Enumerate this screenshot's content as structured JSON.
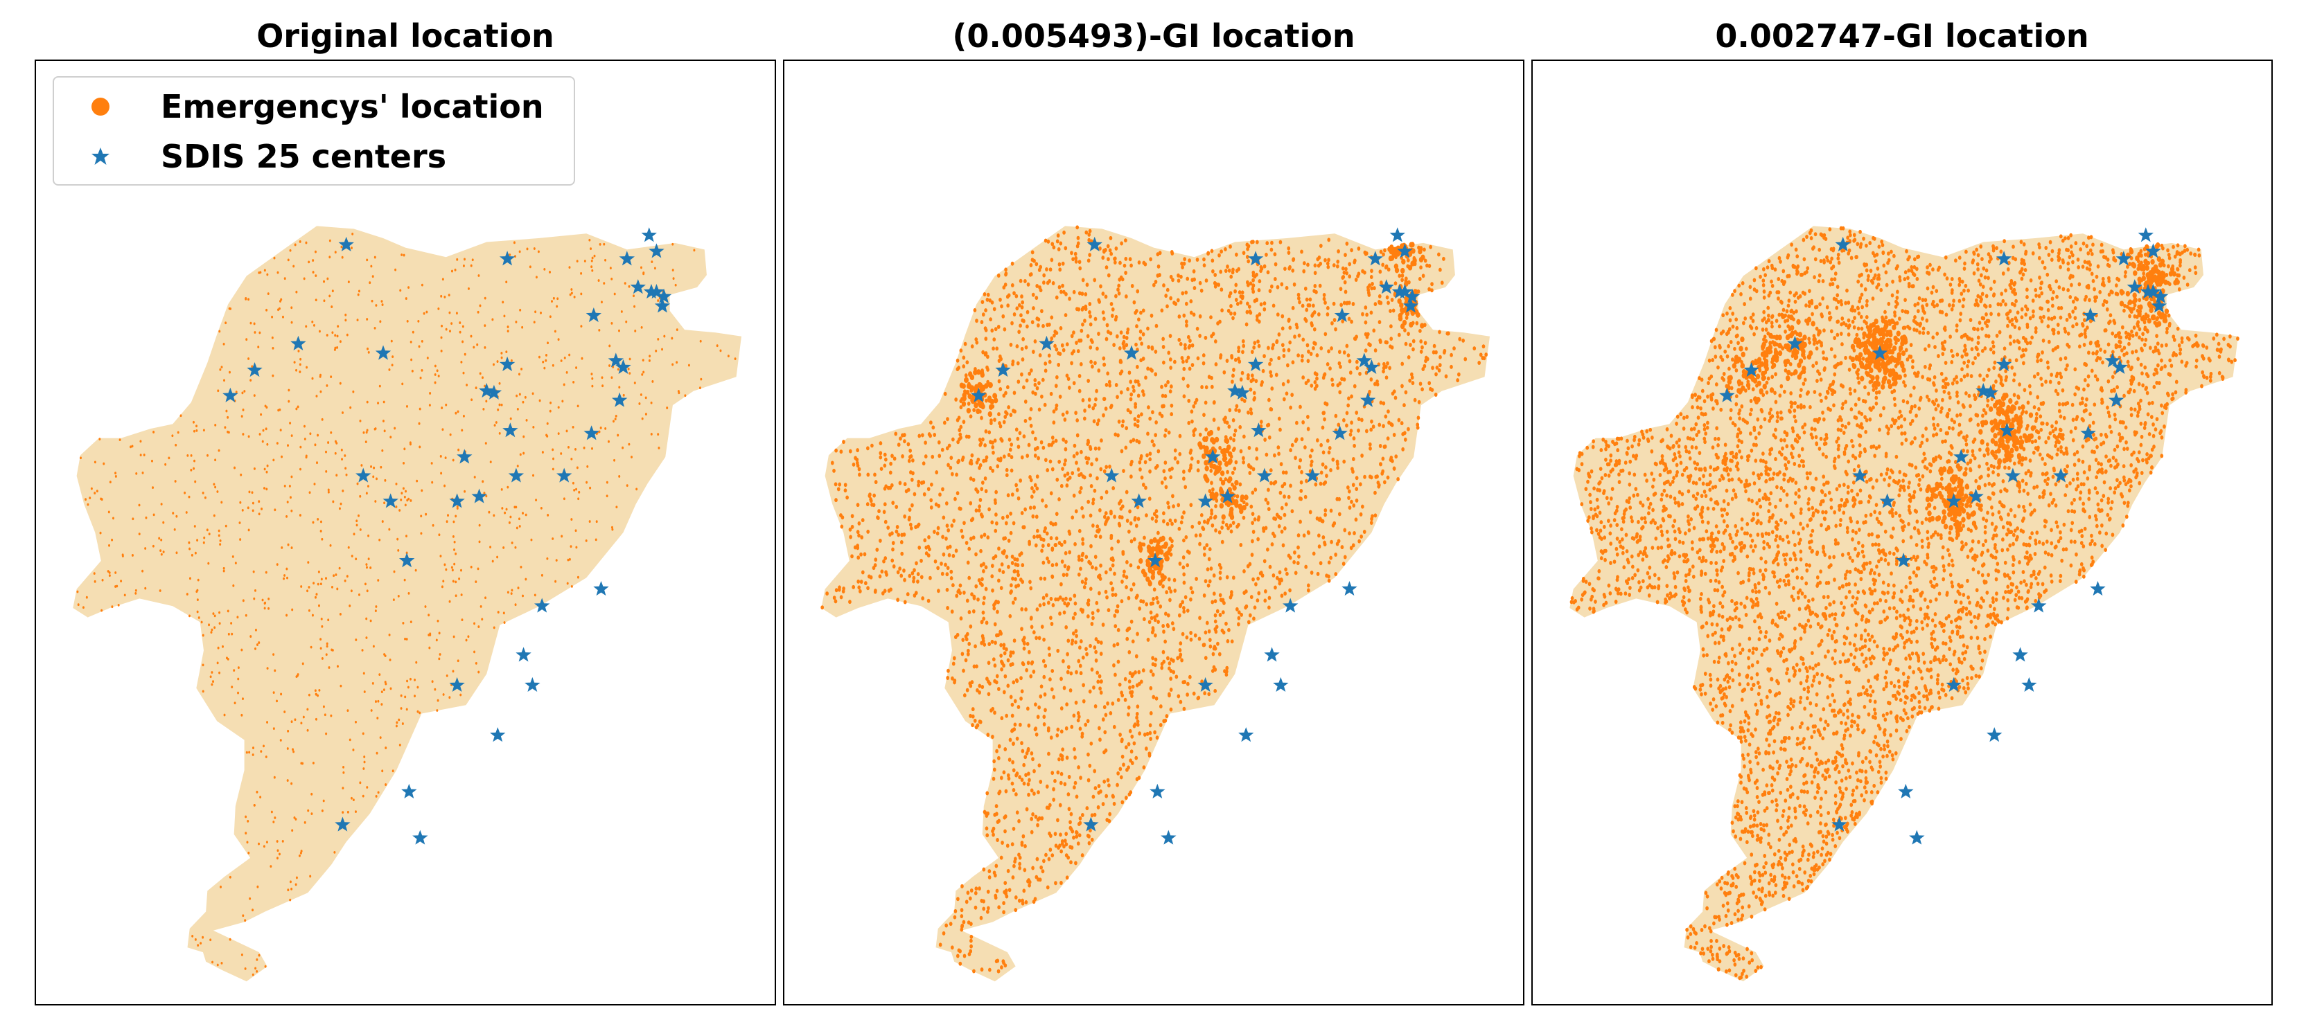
{
  "legend": {
    "entries": [
      {
        "label": "Emergencys' location",
        "marker": "circle",
        "color": "#ff7f0e"
      },
      {
        "label": "SDIS 25 centers",
        "marker": "star",
        "color": "#1f77b4"
      }
    ]
  },
  "colors": {
    "territory_fill": "#f5deb3",
    "emergency_points": "#ff7f0e",
    "center_markers": "#1f77b4",
    "frame": "#000000"
  },
  "panels": [
    {
      "title": "Original location",
      "emergency_density": "sparse"
    },
    {
      "title": "(0.005493)-GI location",
      "emergency_density": "dense"
    },
    {
      "title": "0.002747-GI location",
      "emergency_density": "very dense"
    }
  ]
}
